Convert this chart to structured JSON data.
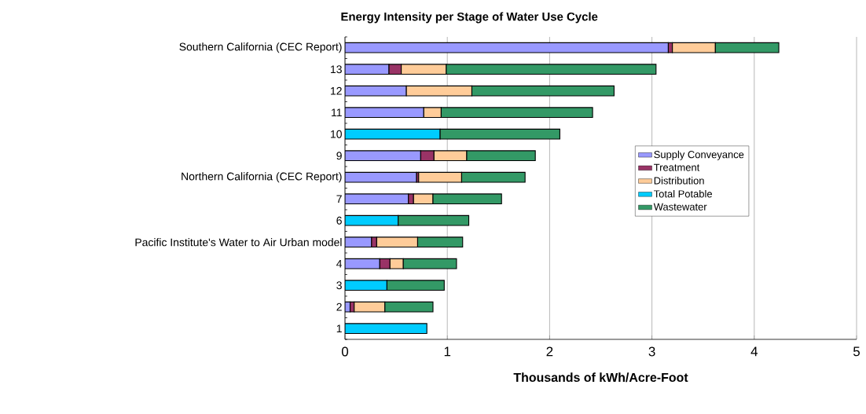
{
  "chart_data": {
    "type": "bar",
    "orientation": "horizontal",
    "stacked": true,
    "title": "Energy Intensity per Stage of Water Use Cycle",
    "xlabel": "Thousands of kWh/Acre-Foot",
    "categories": [
      "Southern California (CEC Report)",
      "13",
      "12",
      "11",
      "10",
      "9",
      "Northern California (CEC Report)",
      "7",
      "6",
      "Pacific Institute's Water to Air Urban model",
      "4",
      "3",
      "2",
      "1"
    ],
    "series": [
      {
        "name": "Supply Conveyance",
        "color": "#9999ff",
        "values": [
          3.16,
          0.43,
          0.6,
          0.77,
          null,
          0.74,
          0.7,
          0.62,
          null,
          0.26,
          0.34,
          null,
          0.05,
          null
        ]
      },
      {
        "name": "Treatment",
        "color": "#993366",
        "values": [
          0.04,
          0.12,
          null,
          null,
          null,
          0.13,
          0.02,
          0.05,
          null,
          0.05,
          0.1,
          null,
          0.04,
          null
        ]
      },
      {
        "name": "Distribution",
        "color": "#ffcc99",
        "values": [
          0.42,
          0.44,
          0.64,
          0.17,
          null,
          0.32,
          0.42,
          0.19,
          null,
          0.4,
          0.13,
          null,
          0.3,
          null
        ]
      },
      {
        "name": "Total Potable",
        "color": "#00ccff",
        "values": [
          null,
          null,
          null,
          null,
          0.93,
          null,
          null,
          null,
          0.52,
          null,
          null,
          0.41,
          null,
          0.8
        ]
      },
      {
        "name": "Wastewater",
        "color": "#339966",
        "values": [
          0.62,
          2.05,
          1.39,
          1.48,
          1.17,
          0.67,
          0.62,
          0.67,
          0.69,
          0.44,
          0.52,
          0.56,
          0.47,
          null
        ]
      }
    ],
    "xlim": [
      0,
      5
    ],
    "xticks": [
      0,
      1,
      2,
      3,
      4,
      5
    ],
    "grid": "x",
    "legend": "right"
  }
}
